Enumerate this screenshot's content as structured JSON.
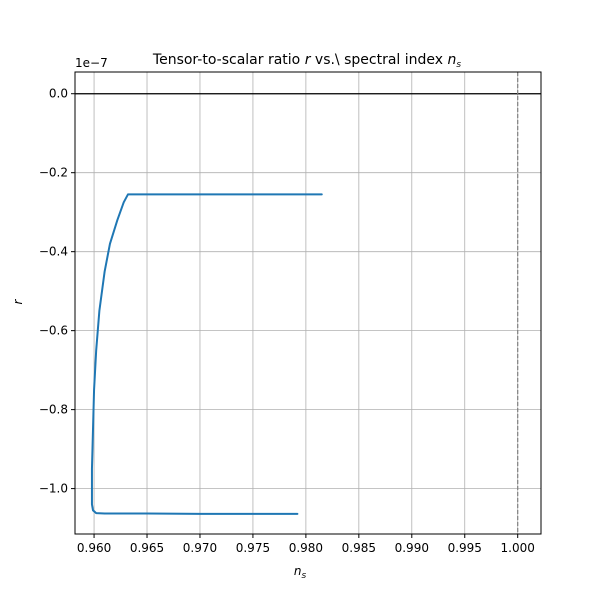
{
  "chart_data": {
    "type": "line",
    "title": "Tensor-to-scalar ratio",
    "title_parts": {
      "prefix": "Tensor-to-scalar ratio ",
      "r_symbol": "r",
      "middle": " vs.\\ spectral index ",
      "ns_base": "n",
      "ns_sub": "s"
    },
    "xlabel": {
      "base": "n",
      "sub": "s"
    },
    "ylabel": "r",
    "y_offset_text": "1e−7",
    "xlim": [
      0.9582,
      1.0022
    ],
    "ylim": [
      -1.115,
      0.055
    ],
    "x_ticks": [
      0.96,
      0.965,
      0.97,
      0.975,
      0.98,
      0.985,
      0.99,
      0.995,
      1.0
    ],
    "x_tick_labels": [
      "0.960",
      "0.965",
      "0.970",
      "0.975",
      "0.980",
      "0.985",
      "0.990",
      "0.995",
      "1.000"
    ],
    "y_ticks": [
      0.0,
      -0.2,
      -0.4,
      -0.6,
      -0.8,
      -1.0
    ],
    "y_tick_labels": [
      "0.0",
      "−0.2",
      "−0.4",
      "−0.6",
      "−0.8",
      "−1.0"
    ],
    "grid": true,
    "reference_lines": {
      "horizontal_y": 0.0,
      "vertical_x": 1.0
    },
    "series": [
      {
        "color": "#1f77b4",
        "x": [
          0.9815,
          0.975,
          0.97,
          0.965,
          0.9632,
          0.9628,
          0.9622,
          0.9615,
          0.961,
          0.9605,
          0.9602,
          0.96,
          0.9599,
          0.9598,
          0.9598,
          0.9599,
          0.9602,
          0.961,
          0.965,
          0.97,
          0.975,
          0.9792
        ],
        "y": [
          -0.255,
          -0.255,
          -0.255,
          -0.255,
          -0.255,
          -0.275,
          -0.32,
          -0.38,
          -0.45,
          -0.55,
          -0.65,
          -0.75,
          -0.85,
          -0.95,
          -1.04,
          -1.055,
          -1.062,
          -1.063,
          -1.063,
          -1.064,
          -1.064,
          -1.064
        ]
      }
    ]
  }
}
